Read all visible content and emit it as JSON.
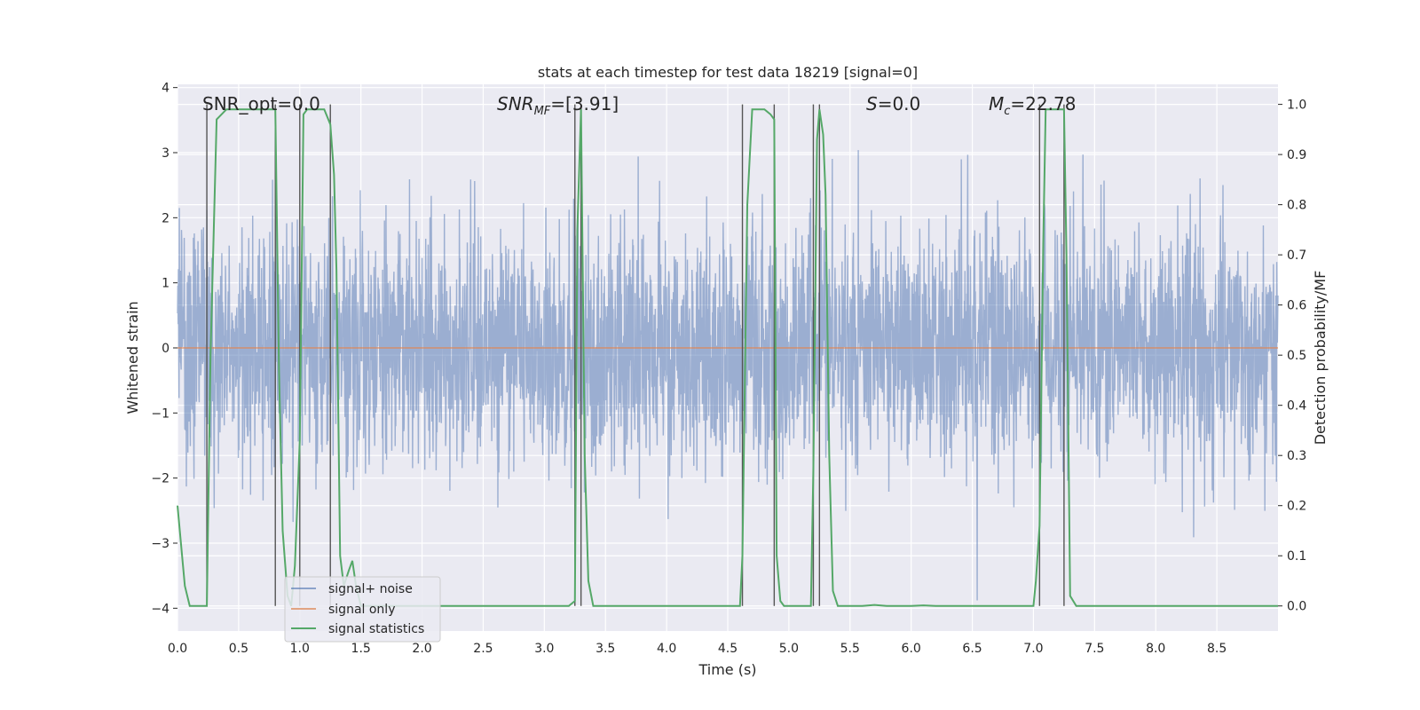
{
  "chart_data": {
    "type": "line",
    "title": "stats at each timestep for test data 18219 [signal=0]",
    "xlabel": "Time (s)",
    "ylabel_left": "Whitened strain",
    "ylabel_right": "Detection probability/MF",
    "xlim": [
      0,
      9.0
    ],
    "ylim_left": [
      -4.35,
      4.05
    ],
    "ylim_right": [
      -0.05,
      1.04
    ],
    "x_ticks": [
      "0.0",
      "0.5",
      "1.0",
      "1.5",
      "2.0",
      "2.5",
      "3.0",
      "3.5",
      "4.0",
      "4.5",
      "5.0",
      "5.5",
      "6.0",
      "6.5",
      "7.0",
      "7.5",
      "8.0",
      "8.5"
    ],
    "y_left_ticks": [
      "4",
      "3",
      "2",
      "1",
      "0",
      "−1",
      "−2",
      "−3",
      "−4"
    ],
    "y_right_ticks": [
      "1.0",
      "0.9",
      "0.8",
      "0.7",
      "0.6",
      "0.5",
      "0.4",
      "0.3",
      "0.2",
      "0.1",
      "0.0"
    ],
    "grid": true,
    "legend_position": "lower-left",
    "annotations": {
      "snr_opt": "SNR_opt=0.0",
      "snr_mf_base": "SNR",
      "snr_mf_sub": "MF",
      "snr_mf_rest": "=[3.91]",
      "s_label": "S",
      "s_rest": "=0.0",
      "mc_base": "M",
      "mc_sub": "c",
      "mc_rest": "=22.78"
    },
    "series": [
      {
        "name": "signal+ noise",
        "color": "#4c72b0",
        "description_values": "whitened noise, typical amplitude between -2 and 2, peaks up to about 3.7 and down to about -4",
        "seed": 18219,
        "sample_rate_hz": 400,
        "std": 0.92
      },
      {
        "name": "signal only",
        "color": "#dd8452",
        "values_constant": 0
      },
      {
        "name": "signal statistics",
        "color": "#55a868",
        "x": [
          0.0,
          0.06,
          0.1,
          0.24,
          0.27,
          0.32,
          0.4,
          0.5,
          0.6,
          0.7,
          0.8,
          0.83,
          0.86,
          0.9,
          0.93,
          0.96,
          1.0,
          1.03,
          1.06,
          1.1,
          1.2,
          1.25,
          1.28,
          1.3,
          1.33,
          1.36,
          1.4,
          1.43,
          1.46,
          1.5,
          1.6,
          2.0,
          2.5,
          3.0,
          3.2,
          3.25,
          3.27,
          3.3,
          3.33,
          3.36,
          3.4,
          3.5,
          4.0,
          4.5,
          4.6,
          4.62,
          4.66,
          4.7,
          4.75,
          4.8,
          4.85,
          4.88,
          4.9,
          4.93,
          4.96,
          5.0,
          5.1,
          5.18,
          5.2,
          5.23,
          5.25,
          5.28,
          5.3,
          5.33,
          5.36,
          5.4,
          5.5,
          5.6,
          5.7,
          5.8,
          6.0,
          6.1,
          6.2,
          6.5,
          7.0,
          7.02,
          7.05,
          7.08,
          7.1,
          7.2,
          7.25,
          7.27,
          7.3,
          7.35,
          7.5,
          8.0,
          8.5,
          9.0
        ],
        "values": [
          0.2,
          0.04,
          0.0,
          0.0,
          0.5,
          0.97,
          0.99,
          0.99,
          0.99,
          0.99,
          0.99,
          0.47,
          0.15,
          0.02,
          0.0,
          0.08,
          0.33,
          0.98,
          0.99,
          0.99,
          0.99,
          0.96,
          0.86,
          0.67,
          0.1,
          0.04,
          0.07,
          0.09,
          0.04,
          0.0,
          0.0,
          0.0,
          0.0,
          0.0,
          0.0,
          0.01,
          0.75,
          0.99,
          0.3,
          0.05,
          0.0,
          0.0,
          0.0,
          0.0,
          0.0,
          0.1,
          0.8,
          0.99,
          0.99,
          0.99,
          0.98,
          0.97,
          0.1,
          0.01,
          0.0,
          0.0,
          0.0,
          0.0,
          0.27,
          0.93,
          0.99,
          0.94,
          0.82,
          0.3,
          0.03,
          0.0,
          0.0,
          0.0,
          0.002,
          0.0,
          0.0,
          0.001,
          0.0,
          0.0,
          0.0,
          0.05,
          0.16,
          0.72,
          0.99,
          0.99,
          0.99,
          0.7,
          0.02,
          0.0,
          0.0,
          0.0,
          0.0,
          0.0
        ]
      }
    ],
    "vertical_lines": {
      "color": "#555555",
      "x": [
        0.24,
        0.8,
        1.0,
        1.25,
        3.25,
        3.3,
        4.62,
        4.88,
        5.2,
        5.25,
        7.05,
        7.25
      ]
    }
  }
}
